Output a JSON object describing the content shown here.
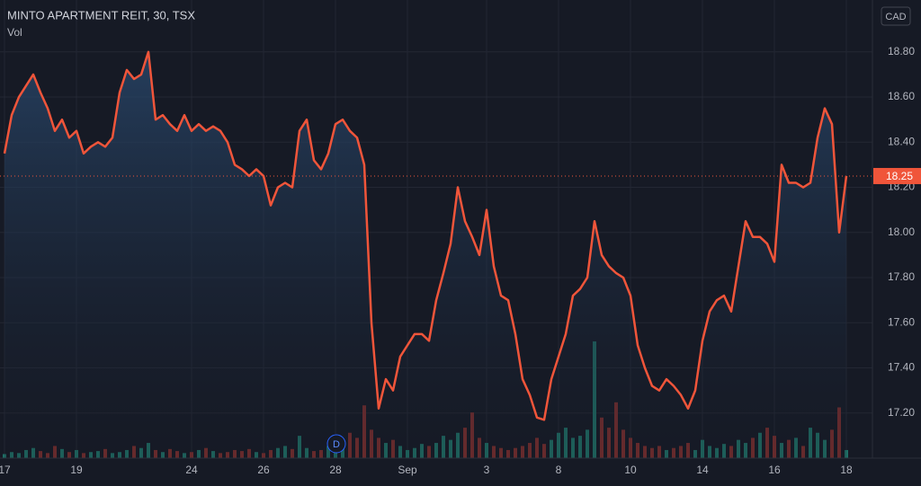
{
  "chart_data": {
    "type": "line",
    "title": "MINTO APARTMENT REIT, 30, TSX",
    "volume_label": "Vol",
    "currency": "CAD",
    "marker": "D",
    "last_price": 18.25,
    "categories": [
      "17",
      null,
      null,
      null,
      null,
      null,
      null,
      null,
      null,
      null,
      "19",
      null,
      null,
      null,
      null,
      null,
      null,
      null,
      null,
      null,
      null,
      null,
      null,
      null,
      null,
      null,
      "24",
      null,
      null,
      null,
      null,
      null,
      null,
      null,
      null,
      null,
      "26",
      null,
      null,
      null,
      null,
      null,
      null,
      null,
      null,
      null,
      "28",
      null,
      null,
      null,
      null,
      null,
      null,
      null,
      null,
      null,
      "Sep",
      null,
      null,
      null,
      null,
      null,
      null,
      null,
      null,
      null,
      null,
      "3",
      null,
      null,
      null,
      null,
      null,
      null,
      null,
      null,
      null,
      "8",
      null,
      null,
      null,
      null,
      null,
      null,
      null,
      null,
      null,
      "10",
      null,
      null,
      null,
      null,
      null,
      null,
      null,
      null,
      null,
      "14",
      null,
      null,
      null,
      null,
      null,
      null,
      null,
      null,
      null,
      "16",
      null,
      null,
      null,
      null,
      null,
      null,
      null,
      null,
      null,
      "18"
    ],
    "series": [
      {
        "name": "Price",
        "color": "#f0553a",
        "values": [
          18.35,
          18.52,
          18.6,
          18.65,
          18.7,
          18.62,
          18.55,
          18.45,
          18.5,
          18.42,
          18.45,
          18.35,
          18.38,
          18.4,
          18.38,
          18.42,
          18.62,
          18.72,
          18.68,
          18.7,
          18.8,
          18.5,
          18.52,
          18.48,
          18.45,
          18.52,
          18.45,
          18.48,
          18.45,
          18.47,
          18.45,
          18.4,
          18.3,
          18.28,
          18.25,
          18.28,
          18.25,
          18.12,
          18.2,
          18.22,
          18.2,
          18.45,
          18.5,
          18.32,
          18.28,
          18.35,
          18.48,
          18.5,
          18.45,
          18.42,
          18.3,
          17.6,
          17.22,
          17.35,
          17.3,
          17.45,
          17.5,
          17.55,
          17.55,
          17.52,
          17.7,
          17.82,
          17.95,
          18.2,
          18.05,
          17.98,
          17.9,
          18.1,
          17.85,
          17.72,
          17.7,
          17.55,
          17.35,
          17.28,
          17.18,
          17.17,
          17.35,
          17.45,
          17.55,
          17.72,
          17.75,
          17.8,
          18.05,
          17.9,
          17.85,
          17.82,
          17.8,
          17.72,
          17.5,
          17.4,
          17.32,
          17.3,
          17.35,
          17.32,
          17.28,
          17.22,
          17.3,
          17.52,
          17.65,
          17.7,
          17.72,
          17.65,
          17.85,
          18.05,
          17.98,
          17.98,
          17.95,
          17.87,
          18.3,
          18.22,
          18.22,
          18.2,
          18.22,
          18.42,
          18.55,
          18.48,
          18.0,
          18.25
        ]
      },
      {
        "name": "Vol",
        "up_color": "#1f6f66",
        "down_color": "#7a2e2e",
        "values": [
          4,
          6,
          5,
          8,
          10,
          7,
          5,
          12,
          9,
          6,
          8,
          5,
          6,
          7,
          9,
          5,
          6,
          8,
          12,
          10,
          15,
          8,
          6,
          9,
          7,
          5,
          6,
          8,
          10,
          7,
          5,
          6,
          8,
          7,
          9,
          6,
          5,
          8,
          10,
          12,
          9,
          22,
          10,
          7,
          8,
          12,
          15,
          18,
          25,
          20,
          52,
          28,
          20,
          15,
          18,
          12,
          8,
          10,
          14,
          12,
          15,
          22,
          18,
          25,
          30,
          45,
          20,
          15,
          12,
          10,
          8,
          10,
          12,
          15,
          20,
          14,
          18,
          25,
          30,
          20,
          22,
          28,
          115,
          40,
          30,
          55,
          28,
          20,
          15,
          12,
          10,
          12,
          8,
          10,
          12,
          15,
          8,
          18,
          12,
          10,
          14,
          12,
          18,
          15,
          20,
          25,
          30,
          22,
          15,
          18,
          20,
          12,
          30,
          25,
          18,
          28,
          50,
          8
        ]
      }
    ],
    "ylim": [
      17.0,
      19.03
    ],
    "yticks": [
      {
        "value": 17.2,
        "label": "17.20"
      },
      {
        "value": 17.4,
        "label": "17.40"
      },
      {
        "value": 17.6,
        "label": "17.60"
      },
      {
        "value": 17.8,
        "label": "17.80"
      },
      {
        "value": 18.0,
        "label": "18.00"
      },
      {
        "value": 18.2,
        "label": "18.20"
      },
      {
        "value": 18.4,
        "label": "18.40"
      },
      {
        "value": 18.6,
        "label": "18.60"
      },
      {
        "value": 18.8,
        "label": "18.80"
      }
    ],
    "grid": true
  }
}
